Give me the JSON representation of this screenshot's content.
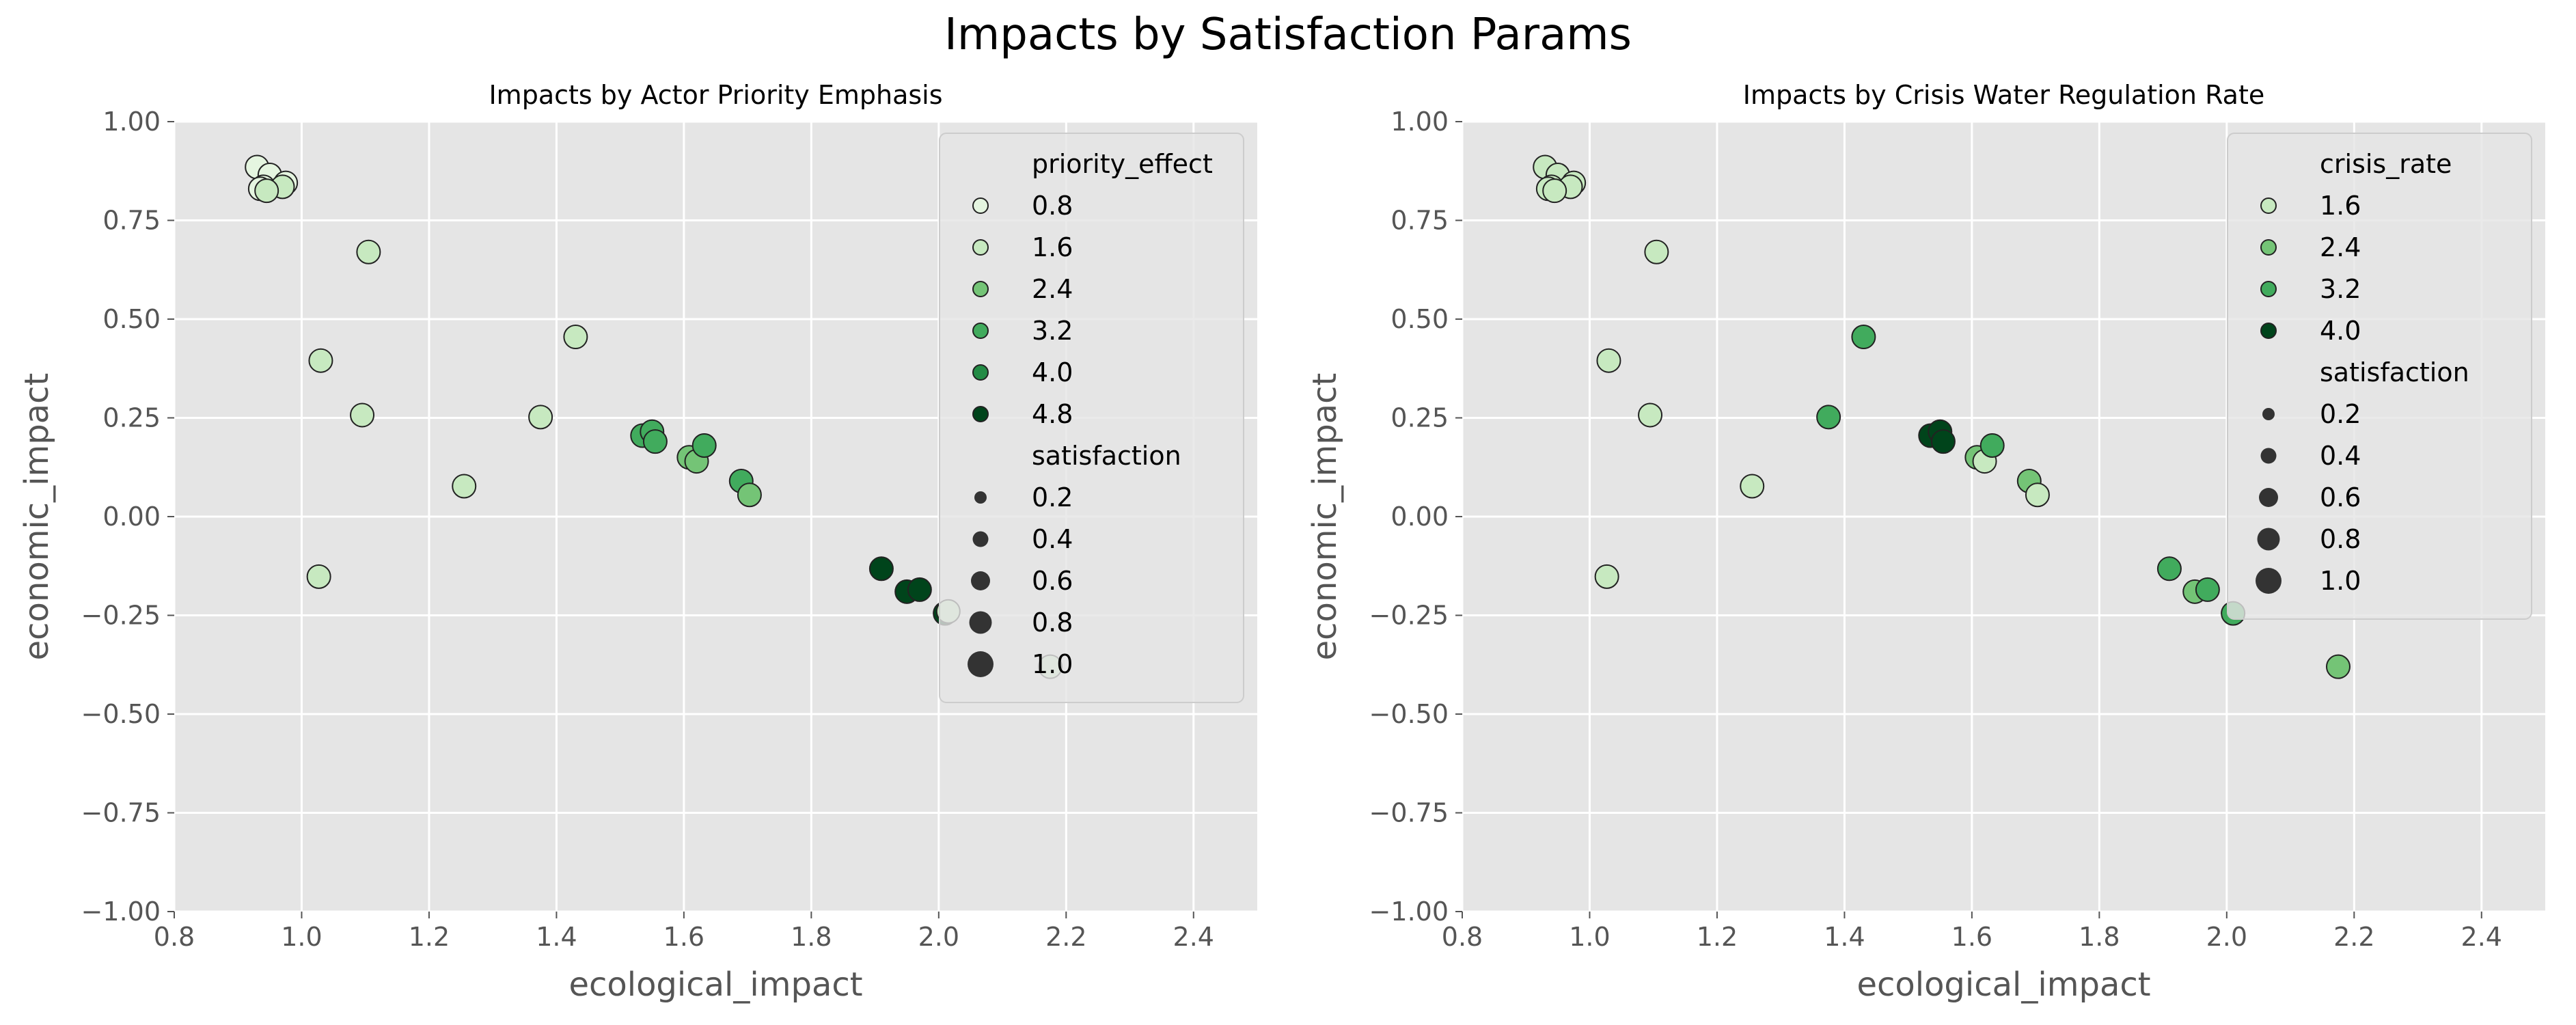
{
  "suptitle": "Impacts by Satisfaction Params",
  "chart_data": [
    {
      "type": "scatter",
      "title": "Impacts by Actor Priority Emphasis",
      "xlabel": "ecological_impact",
      "ylabel": "economic_impact",
      "xlim": [
        0.8,
        2.5
      ],
      "ylim": [
        -1.0,
        1.0
      ],
      "xticks": [
        "0.8",
        "1.0",
        "1.2",
        "1.4",
        "1.6",
        "1.8",
        "2.0",
        "2.2",
        "2.4"
      ],
      "yticks": [
        "−1.00",
        "−0.75",
        "−0.50",
        "−0.25",
        "0.00",
        "0.25",
        "0.50",
        "0.75",
        "1.00"
      ],
      "grid": true,
      "legend_position": "upper right",
      "hue_title": "priority_effect",
      "hue_levels": [
        {
          "label": "0.8",
          "color": "#e5f5e0"
        },
        {
          "label": "1.6",
          "color": "#c7e9c0"
        },
        {
          "label": "2.4",
          "color": "#74c476"
        },
        {
          "label": "3.2",
          "color": "#41ab5d"
        },
        {
          "label": "4.0",
          "color": "#238b45"
        },
        {
          "label": "4.8",
          "color": "#00441b"
        }
      ],
      "size_title": "satisfaction",
      "size_levels": [
        "0.2",
        "0.4",
        "0.6",
        "0.8",
        "1.0"
      ],
      "points": [
        {
          "x": 0.93,
          "y": 0.885,
          "hue": 0.8
        },
        {
          "x": 0.95,
          "y": 0.865,
          "hue": 0.8
        },
        {
          "x": 0.975,
          "y": 0.845,
          "hue": 0.8
        },
        {
          "x": 0.94,
          "y": 0.835,
          "hue": 0.8
        },
        {
          "x": 0.935,
          "y": 0.83,
          "hue": 0.8
        },
        {
          "x": 0.97,
          "y": 0.835,
          "hue": 1.6
        },
        {
          "x": 0.945,
          "y": 0.825,
          "hue": 1.6
        },
        {
          "x": 1.105,
          "y": 0.67,
          "hue": 1.6
        },
        {
          "x": 1.03,
          "y": 0.395,
          "hue": 1.6
        },
        {
          "x": 1.095,
          "y": 0.257,
          "hue": 1.6
        },
        {
          "x": 1.027,
          "y": -0.152,
          "hue": 1.6
        },
        {
          "x": 1.255,
          "y": 0.077,
          "hue": 1.6
        },
        {
          "x": 1.375,
          "y": 0.252,
          "hue": 1.6
        },
        {
          "x": 1.43,
          "y": 0.455,
          "hue": 1.6
        },
        {
          "x": 1.535,
          "y": 0.205,
          "hue": 3.2
        },
        {
          "x": 1.55,
          "y": 0.215,
          "hue": 3.2
        },
        {
          "x": 1.555,
          "y": 0.19,
          "hue": 3.2
        },
        {
          "x": 1.608,
          "y": 0.15,
          "hue": 2.4
        },
        {
          "x": 1.62,
          "y": 0.14,
          "hue": 2.4
        },
        {
          "x": 1.632,
          "y": 0.18,
          "hue": 3.2
        },
        {
          "x": 1.69,
          "y": 0.09,
          "hue": 3.2
        },
        {
          "x": 1.703,
          "y": 0.055,
          "hue": 2.4
        },
        {
          "x": 1.91,
          "y": -0.132,
          "hue": 4.8
        },
        {
          "x": 1.95,
          "y": -0.19,
          "hue": 4.8
        },
        {
          "x": 1.97,
          "y": -0.185,
          "hue": 4.8
        },
        {
          "x": 2.01,
          "y": -0.245,
          "hue": 4.8
        },
        {
          "x": 2.015,
          "y": -0.24,
          "hue": 1.6
        },
        {
          "x": 2.175,
          "y": -0.38,
          "hue": 1.6
        }
      ]
    },
    {
      "type": "scatter",
      "title": "Impacts by Crisis Water Regulation Rate",
      "xlabel": "ecological_impact",
      "ylabel": "economic_impact",
      "xlim": [
        0.8,
        2.5
      ],
      "ylim": [
        -1.0,
        1.0
      ],
      "xticks": [
        "0.8",
        "1.0",
        "1.2",
        "1.4",
        "1.6",
        "1.8",
        "2.0",
        "2.2",
        "2.4"
      ],
      "yticks": [
        "−1.00",
        "−0.75",
        "−0.50",
        "−0.25",
        "0.00",
        "0.25",
        "0.50",
        "0.75",
        "1.00"
      ],
      "grid": true,
      "legend_position": "upper right",
      "hue_title": "crisis_rate",
      "hue_levels": [
        {
          "label": "1.6",
          "color": "#c7e9c0"
        },
        {
          "label": "2.4",
          "color": "#74c476"
        },
        {
          "label": "3.2",
          "color": "#41ab5d"
        },
        {
          "label": "4.0",
          "color": "#00441b"
        }
      ],
      "size_title": "satisfaction",
      "size_levels": [
        "0.2",
        "0.4",
        "0.6",
        "0.8",
        "1.0"
      ],
      "points": [
        {
          "x": 0.93,
          "y": 0.885,
          "hue": 1.6
        },
        {
          "x": 0.95,
          "y": 0.865,
          "hue": 1.6
        },
        {
          "x": 0.975,
          "y": 0.845,
          "hue": 1.6
        },
        {
          "x": 0.94,
          "y": 0.835,
          "hue": 1.6
        },
        {
          "x": 0.935,
          "y": 0.83,
          "hue": 1.6
        },
        {
          "x": 0.97,
          "y": 0.835,
          "hue": 1.6
        },
        {
          "x": 0.945,
          "y": 0.825,
          "hue": 1.6
        },
        {
          "x": 1.105,
          "y": 0.67,
          "hue": 1.6
        },
        {
          "x": 1.03,
          "y": 0.395,
          "hue": 1.6
        },
        {
          "x": 1.095,
          "y": 0.257,
          "hue": 1.6
        },
        {
          "x": 1.027,
          "y": -0.152,
          "hue": 1.6
        },
        {
          "x": 1.255,
          "y": 0.077,
          "hue": 1.6
        },
        {
          "x": 1.375,
          "y": 0.252,
          "hue": 3.2
        },
        {
          "x": 1.43,
          "y": 0.455,
          "hue": 3.2
        },
        {
          "x": 1.535,
          "y": 0.205,
          "hue": 4.0
        },
        {
          "x": 1.55,
          "y": 0.215,
          "hue": 4.0
        },
        {
          "x": 1.555,
          "y": 0.19,
          "hue": 4.0
        },
        {
          "x": 1.608,
          "y": 0.15,
          "hue": 2.4
        },
        {
          "x": 1.62,
          "y": 0.14,
          "hue": 1.6
        },
        {
          "x": 1.632,
          "y": 0.18,
          "hue": 3.2
        },
        {
          "x": 1.69,
          "y": 0.09,
          "hue": 2.4
        },
        {
          "x": 1.703,
          "y": 0.055,
          "hue": 1.6
        },
        {
          "x": 1.91,
          "y": -0.132,
          "hue": 3.2
        },
        {
          "x": 1.95,
          "y": -0.19,
          "hue": 2.4
        },
        {
          "x": 1.97,
          "y": -0.185,
          "hue": 3.2
        },
        {
          "x": 2.01,
          "y": -0.245,
          "hue": 3.2
        },
        {
          "x": 2.175,
          "y": -0.38,
          "hue": 2.4
        }
      ]
    }
  ]
}
